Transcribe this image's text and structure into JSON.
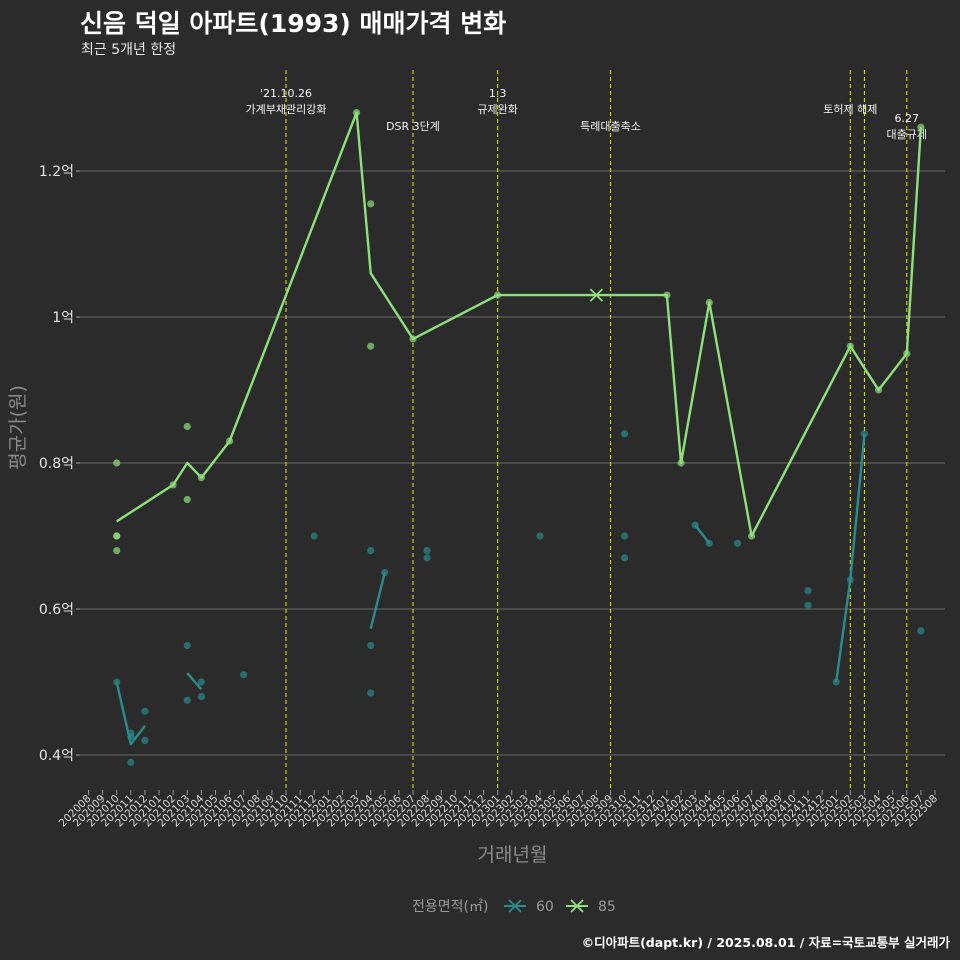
{
  "chart_data": {
    "type": "line",
    "title": "신음 덕일 아파트(1993) 매매가격 변화",
    "subtitle": "최근 5개년 한정",
    "xlabel": "거래년월",
    "ylabel": "평균가(원)",
    "ylim": [
      0.35,
      1.35
    ],
    "y_ticks": [
      {
        "value": 0.4,
        "label": "0.4억"
      },
      {
        "value": 0.6,
        "label": "0.6억"
      },
      {
        "value": 0.8,
        "label": "0.8억"
      },
      {
        "value": 1.0,
        "label": "1억"
      },
      {
        "value": 1.2,
        "label": "1.2억"
      }
    ],
    "x_start": "2020-08",
    "x_end": "2025-08",
    "x_categories": [
      "202008",
      "202009",
      "202010",
      "202011",
      "202012",
      "202101",
      "202102",
      "202103",
      "202104",
      "202105",
      "202106",
      "202107",
      "202108",
      "202109",
      "202110",
      "202111",
      "202112",
      "202201",
      "202202",
      "202203",
      "202204",
      "202205",
      "202206",
      "202207",
      "202208",
      "202209",
      "202210",
      "202211",
      "202212",
      "202301",
      "202302",
      "202303",
      "202304",
      "202305",
      "202306",
      "202307",
      "202308",
      "202309",
      "202310",
      "202311",
      "202312",
      "202401",
      "202402",
      "202403",
      "202404",
      "202405",
      "202406",
      "202407",
      "202408",
      "202409",
      "202410",
      "202411",
      "202412",
      "202501",
      "202502",
      "202503",
      "202504",
      "202505",
      "202506",
      "202507",
      "202508"
    ],
    "grid": true,
    "legend": {
      "title": "전용면적(㎡)",
      "placement": "bottom",
      "items": [
        {
          "name": "60",
          "color": "#2a8c8c"
        },
        {
          "name": "85",
          "color": "#8ee07a"
        }
      ]
    },
    "events": [
      {
        "date": "2021-10",
        "label": "'21.10.26\n가계부채관리강화",
        "level": 0
      },
      {
        "date": "2022-07",
        "label": "DSR 3단계",
        "level": 1
      },
      {
        "date": "2023-01",
        "label": "1.3\n규제완화",
        "level": 0
      },
      {
        "date": "2023-09",
        "label": "특례대출축소",
        "level": 1
      },
      {
        "date": "2025-02",
        "label": "토허제 해제",
        "level": 0
      },
      {
        "date": "2025-03",
        "label": "",
        "level": 0
      },
      {
        "date": "2025-06",
        "label": "6.27\n대출규제",
        "level": 2
      }
    ],
    "series": [
      {
        "name": "60",
        "color": "#2a8c8c",
        "line": [
          {
            "x": "2020-10",
            "y": 0.5
          },
          {
            "x": "2020-11",
            "y": 0.415
          },
          {
            "x": "2020-12",
            "y": 0.44
          },
          {
            "x": "",
            "y": null
          },
          {
            "x": "2021-03",
            "y": 0.512
          },
          {
            "x": "2021-04",
            "y": 0.49
          },
          {
            "x": "",
            "y": null
          },
          {
            "x": "2022-04",
            "y": 0.573
          },
          {
            "x": "2022-05",
            "y": 0.65
          },
          {
            "x": "",
            "y": null
          },
          {
            "x": "2024-03",
            "y": 0.715
          },
          {
            "x": "2024-04",
            "y": 0.69
          },
          {
            "x": "",
            "y": null
          },
          {
            "x": "2025-01",
            "y": 0.5
          },
          {
            "x": "2025-02",
            "y": 0.64
          },
          {
            "x": "2025-03",
            "y": 0.84
          }
        ],
        "points": [
          {
            "x": "2020-10",
            "y": 0.5
          },
          {
            "x": "2020-11",
            "y": 0.43
          },
          {
            "x": "2020-11",
            "y": 0.425
          },
          {
            "x": "2020-11",
            "y": 0.39
          },
          {
            "x": "2020-12",
            "y": 0.46
          },
          {
            "x": "2020-12",
            "y": 0.42
          },
          {
            "x": "2021-03",
            "y": 0.55
          },
          {
            "x": "2021-03",
            "y": 0.475
          },
          {
            "x": "2021-04",
            "y": 0.5
          },
          {
            "x": "2021-04",
            "y": 0.48
          },
          {
            "x": "2021-07",
            "y": 0.51
          },
          {
            "x": "2021-12",
            "y": 0.7
          },
          {
            "x": "2022-04",
            "y": 0.68
          },
          {
            "x": "2022-04",
            "y": 0.55
          },
          {
            "x": "2022-04",
            "y": 0.485
          },
          {
            "x": "2022-05",
            "y": 0.65
          },
          {
            "x": "2022-08",
            "y": 0.68
          },
          {
            "x": "2022-08",
            "y": 0.67
          },
          {
            "x": "2023-04",
            "y": 0.7
          },
          {
            "x": "2023-10",
            "y": 0.84
          },
          {
            "x": "2023-10",
            "y": 0.7
          },
          {
            "x": "2023-10",
            "y": 0.67
          },
          {
            "x": "2024-03",
            "y": 0.715
          },
          {
            "x": "2024-04",
            "y": 0.69
          },
          {
            "x": "2024-06",
            "y": 0.69
          },
          {
            "x": "2024-11",
            "y": 0.625
          },
          {
            "x": "2024-11",
            "y": 0.605
          },
          {
            "x": "2025-01",
            "y": 0.5
          },
          {
            "x": "2025-02",
            "y": 0.64
          },
          {
            "x": "2025-03",
            "y": 0.84
          },
          {
            "x": "2025-07",
            "y": 0.57
          }
        ]
      },
      {
        "name": "85",
        "color": "#8ee07a",
        "line": [
          {
            "x": "2020-10",
            "y": 0.72
          },
          {
            "x": "2021-02",
            "y": 0.77
          },
          {
            "x": "2021-03",
            "y": 0.8
          },
          {
            "x": "2021-04",
            "y": 0.78
          },
          {
            "x": "2021-06",
            "y": 0.83
          },
          {
            "x": "2022-03",
            "y": 1.28
          },
          {
            "x": "2022-04",
            "y": 1.06
          },
          {
            "x": "2022-07",
            "y": 0.97
          },
          {
            "x": "2023-01",
            "y": 1.03
          },
          {
            "x": "2023-08",
            "y": 1.03
          },
          {
            "x": "2024-01",
            "y": 1.03
          },
          {
            "x": "2024-02",
            "y": 0.8
          },
          {
            "x": "2024-04",
            "y": 1.02
          },
          {
            "x": "2024-07",
            "y": 0.7
          },
          {
            "x": "2025-02",
            "y": 0.96
          },
          {
            "x": "2025-04",
            "y": 0.9
          },
          {
            "x": "2025-06",
            "y": 0.95
          },
          {
            "x": "2025-07",
            "y": 1.26
          }
        ],
        "points": [
          {
            "x": "2020-10",
            "y": 0.8
          },
          {
            "x": "2020-10",
            "y": 0.7
          },
          {
            "x": "2020-10",
            "y": 0.7
          },
          {
            "x": "2020-10",
            "y": 0.68
          },
          {
            "x": "2021-02",
            "y": 0.77
          },
          {
            "x": "2021-03",
            "y": 0.85
          },
          {
            "x": "2021-03",
            "y": 0.75
          },
          {
            "x": "2021-04",
            "y": 0.78
          },
          {
            "x": "2021-06",
            "y": 0.83
          },
          {
            "x": "2022-03",
            "y": 1.28
          },
          {
            "x": "2022-04",
            "y": 1.155
          },
          {
            "x": "2022-04",
            "y": 0.96
          },
          {
            "x": "2022-07",
            "y": 0.97
          },
          {
            "x": "2023-01",
            "y": 1.03
          },
          {
            "x": "2024-01",
            "y": 1.03
          },
          {
            "x": "2024-02",
            "y": 0.8
          },
          {
            "x": "2024-04",
            "y": 1.02
          },
          {
            "x": "2024-07",
            "y": 0.7
          },
          {
            "x": "2025-02",
            "y": 0.96
          },
          {
            "x": "2025-04",
            "y": 0.9
          },
          {
            "x": "2025-06",
            "y": 0.95
          },
          {
            "x": "2025-07",
            "y": 1.26
          }
        ],
        "crosses": [
          {
            "x": "2023-08",
            "y": 1.03
          }
        ]
      }
    ],
    "caption": "©디아파트(dapt.kr) / 2025.08.01 / 자료=국토교통부 실거래가"
  }
}
